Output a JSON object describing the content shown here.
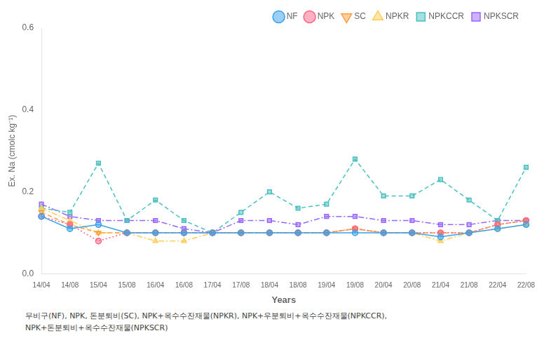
{
  "chart_data": {
    "type": "line",
    "xlabel": "Years",
    "ylabel": "Ex. Na (cmolc kg⁻¹)",
    "categories": [
      "14/04",
      "14/08",
      "15/04",
      "15/08",
      "16/04",
      "16/08",
      "17/04",
      "17/08",
      "18/04",
      "18/08",
      "19/04",
      "19/08",
      "20/04",
      "20/08",
      "21/04",
      "21/08",
      "22/04",
      "22/08"
    ],
    "series": [
      {
        "name": "NF",
        "marker": "circle",
        "line_style": "solid",
        "values": [
          0.14,
          0.11,
          0.12,
          0.1,
          0.1,
          0.1,
          0.1,
          0.1,
          0.1,
          0.1,
          0.1,
          0.1,
          0.1,
          0.1,
          0.09,
          0.1,
          0.11,
          0.12
        ]
      },
      {
        "name": "NPK",
        "marker": "circle",
        "line_style": "dotted",
        "values": [
          0.14,
          0.12,
          0.08,
          0.1,
          0.1,
          0.1,
          0.1,
          0.1,
          0.1,
          0.1,
          0.1,
          0.11,
          0.1,
          0.1,
          0.1,
          0.1,
          0.12,
          0.13
        ]
      },
      {
        "name": "SC",
        "marker": "triangle_down",
        "line_style": "dashed",
        "values": [
          0.15,
          0.12,
          0.1,
          0.1,
          0.1,
          0.1,
          0.1,
          0.1,
          0.1,
          0.1,
          0.1,
          0.11,
          0.1,
          0.1,
          0.1,
          0.1,
          0.12,
          0.13
        ]
      },
      {
        "name": "NPKR",
        "marker": "triangle_up",
        "line_style": "dashdot",
        "values": [
          0.16,
          0.13,
          0.1,
          0.1,
          0.08,
          0.08,
          0.1,
          0.1,
          0.1,
          0.1,
          0.1,
          0.11,
          0.1,
          0.1,
          0.08,
          0.1,
          0.11,
          0.12
        ]
      },
      {
        "name": "NPKCCR",
        "marker": "square",
        "line_style": "dashed",
        "values": [
          0.16,
          0.15,
          0.27,
          0.13,
          0.18,
          0.13,
          0.1,
          0.15,
          0.2,
          0.16,
          0.17,
          0.28,
          0.19,
          0.19,
          0.23,
          0.18,
          0.13,
          0.26
        ]
      },
      {
        "name": "NPKSCR",
        "marker": "square",
        "line_style": "dashdot",
        "values": [
          0.17,
          0.14,
          0.13,
          0.13,
          0.13,
          0.11,
          0.1,
          0.13,
          0.13,
          0.12,
          0.14,
          0.14,
          0.13,
          0.13,
          0.12,
          0.12,
          0.13,
          0.13
        ]
      }
    ],
    "ylim": [
      0.0,
      0.6
    ],
    "yticks": [
      {
        "value": 0,
        "label": "0.0"
      },
      0.2,
      0.4,
      0.6
    ],
    "grid": false,
    "legend": "upper right",
    "annotations": [
      "무비구(NF), NPK, 돈분퇴비(SC), NPK+옥수수잔재물(NPKR), NPK+우분퇴비+옥수수잔재물(NPKCCR),",
      "NPK+돈분퇴비+옥수수잔재물(NPKSCR)"
    ]
  }
}
